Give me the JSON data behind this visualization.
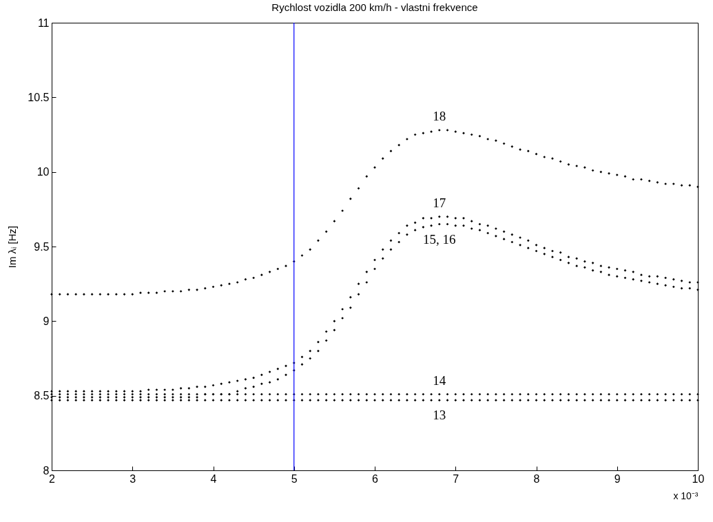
{
  "chart_data": {
    "type": "scatter",
    "title": "Rychlost vozidla 200 km/h - vlastni frekvence",
    "xlabel": "x 10⁻³",
    "ylabel": "Im λᵢ [Hz]",
    "x": [
      2.0,
      2.1,
      2.2,
      2.3,
      2.4,
      2.5,
      2.6,
      2.7,
      2.8,
      2.9,
      3.0,
      3.1,
      3.2,
      3.3,
      3.4,
      3.5,
      3.6,
      3.7,
      3.8,
      3.9,
      4.0,
      4.1,
      4.2,
      4.3,
      4.4,
      4.5,
      4.6,
      4.7,
      4.8,
      4.9,
      5.0,
      5.1,
      5.2,
      5.3,
      5.4,
      5.5,
      5.6,
      5.7,
      5.8,
      5.9,
      6.0,
      6.1,
      6.2,
      6.3,
      6.4,
      6.5,
      6.6,
      6.7,
      6.8,
      6.9,
      7.0,
      7.1,
      7.2,
      7.3,
      7.4,
      7.5,
      7.6,
      7.7,
      7.8,
      7.9,
      8.0,
      8.1,
      8.2,
      8.3,
      8.4,
      8.5,
      8.6,
      8.7,
      8.8,
      8.9,
      9.0,
      9.1,
      9.2,
      9.3,
      9.4,
      9.5,
      9.6,
      9.7,
      9.8,
      9.9,
      10.0
    ],
    "series": [
      {
        "name": "13",
        "color": "#000000",
        "values": [
          8.47,
          8.47,
          8.47,
          8.47,
          8.47,
          8.47,
          8.47,
          8.47,
          8.47,
          8.47,
          8.47,
          8.47,
          8.47,
          8.47,
          8.47,
          8.47,
          8.47,
          8.47,
          8.47,
          8.47,
          8.47,
          8.47,
          8.47,
          8.47,
          8.47,
          8.47,
          8.47,
          8.47,
          8.47,
          8.47,
          8.47,
          8.47,
          8.47,
          8.47,
          8.47,
          8.47,
          8.47,
          8.47,
          8.47,
          8.47,
          8.47,
          8.47,
          8.47,
          8.47,
          8.47,
          8.47,
          8.47,
          8.47,
          8.47,
          8.47,
          8.47,
          8.47,
          8.47,
          8.47,
          8.47,
          8.47,
          8.47,
          8.47,
          8.47,
          8.47,
          8.47,
          8.47,
          8.47,
          8.47,
          8.47,
          8.47,
          8.47,
          8.47,
          8.47,
          8.47,
          8.47,
          8.47,
          8.47,
          8.47,
          8.47,
          8.47,
          8.47,
          8.47,
          8.47,
          8.47,
          8.47
        ]
      },
      {
        "name": "14",
        "color": "#000000",
        "values": [
          8.51,
          8.51,
          8.51,
          8.51,
          8.51,
          8.51,
          8.51,
          8.51,
          8.51,
          8.51,
          8.51,
          8.51,
          8.51,
          8.51,
          8.51,
          8.51,
          8.51,
          8.51,
          8.51,
          8.51,
          8.51,
          8.51,
          8.51,
          8.51,
          8.51,
          8.51,
          8.51,
          8.51,
          8.51,
          8.51,
          8.51,
          8.51,
          8.51,
          8.51,
          8.51,
          8.51,
          8.51,
          8.51,
          8.51,
          8.51,
          8.51,
          8.51,
          8.51,
          8.51,
          8.51,
          8.51,
          8.51,
          8.51,
          8.51,
          8.51,
          8.51,
          8.51,
          8.51,
          8.51,
          8.51,
          8.51,
          8.51,
          8.51,
          8.51,
          8.51,
          8.51,
          8.51,
          8.51,
          8.51,
          8.51,
          8.51,
          8.51,
          8.51,
          8.51,
          8.51,
          8.51,
          8.51,
          8.51,
          8.51,
          8.51,
          8.51,
          8.51,
          8.51,
          8.51,
          8.51,
          8.51
        ]
      },
      {
        "name": "15, 16",
        "color": "#000000",
        "values": [
          8.49,
          8.49,
          8.49,
          8.49,
          8.49,
          8.49,
          8.49,
          8.49,
          8.49,
          8.49,
          8.49,
          8.49,
          8.49,
          8.49,
          8.49,
          8.49,
          8.49,
          8.49,
          8.49,
          8.51,
          8.51,
          8.51,
          8.51,
          8.53,
          8.55,
          8.56,
          8.58,
          8.59,
          8.61,
          8.64,
          8.67,
          8.71,
          8.75,
          8.8,
          8.87,
          8.94,
          9.02,
          9.09,
          9.18,
          9.26,
          9.35,
          9.42,
          9.48,
          9.53,
          9.58,
          9.61,
          9.63,
          9.64,
          9.65,
          9.65,
          9.64,
          9.64,
          9.62,
          9.61,
          9.59,
          9.57,
          9.55,
          9.53,
          9.51,
          9.49,
          9.47,
          9.45,
          9.43,
          9.41,
          9.39,
          9.37,
          9.36,
          9.34,
          9.33,
          9.31,
          9.3,
          9.29,
          9.28,
          9.27,
          9.26,
          9.25,
          9.24,
          9.23,
          9.22,
          9.22,
          9.21
        ]
      },
      {
        "name": "17",
        "color": "#000000",
        "values": [
          8.53,
          8.53,
          8.53,
          8.53,
          8.53,
          8.53,
          8.53,
          8.53,
          8.53,
          8.53,
          8.53,
          8.53,
          8.54,
          8.54,
          8.54,
          8.54,
          8.55,
          8.55,
          8.56,
          8.56,
          8.57,
          8.58,
          8.59,
          8.6,
          8.61,
          8.62,
          8.64,
          8.66,
          8.68,
          8.7,
          8.72,
          8.76,
          8.8,
          8.86,
          8.93,
          9.0,
          9.08,
          9.16,
          9.25,
          9.33,
          9.41,
          9.48,
          9.54,
          9.59,
          9.64,
          9.66,
          9.69,
          9.69,
          9.7,
          9.7,
          9.69,
          9.69,
          9.67,
          9.65,
          9.64,
          9.62,
          9.6,
          9.58,
          9.56,
          9.54,
          9.51,
          9.49,
          9.47,
          9.46,
          9.43,
          9.42,
          9.4,
          9.39,
          9.37,
          9.36,
          9.35,
          9.34,
          9.33,
          9.31,
          9.3,
          9.3,
          9.29,
          9.28,
          9.27,
          9.26,
          9.26
        ]
      },
      {
        "name": "18",
        "color": "#000000",
        "values": [
          9.18,
          9.18,
          9.18,
          9.18,
          9.18,
          9.18,
          9.18,
          9.18,
          9.18,
          9.18,
          9.18,
          9.19,
          9.19,
          9.19,
          9.2,
          9.2,
          9.2,
          9.21,
          9.21,
          9.22,
          9.23,
          9.24,
          9.25,
          9.26,
          9.28,
          9.29,
          9.31,
          9.33,
          9.35,
          9.37,
          9.4,
          9.44,
          9.48,
          9.54,
          9.6,
          9.67,
          9.74,
          9.82,
          9.89,
          9.97,
          10.03,
          10.09,
          10.14,
          10.18,
          10.22,
          10.25,
          10.26,
          10.27,
          10.28,
          10.28,
          10.27,
          10.26,
          10.25,
          10.24,
          10.22,
          10.21,
          10.19,
          10.17,
          10.15,
          10.14,
          10.12,
          10.1,
          10.09,
          10.07,
          10.05,
          10.04,
          10.03,
          10.01,
          10.0,
          9.99,
          9.98,
          9.97,
          9.95,
          9.95,
          9.94,
          9.93,
          9.92,
          9.92,
          9.91,
          9.91,
          9.9
        ]
      }
    ],
    "marker": "diamond",
    "xlim": [
      2,
      10
    ],
    "xticks": [
      2,
      3,
      4,
      5,
      6,
      7,
      8,
      9,
      10
    ],
    "ylim": [
      8,
      11
    ],
    "yticks": [
      8,
      8.5,
      9,
      9.5,
      10,
      10.5,
      11
    ],
    "ref_lines": [
      {
        "axis": "x",
        "value": 5,
        "color": "#0000ff"
      }
    ]
  }
}
